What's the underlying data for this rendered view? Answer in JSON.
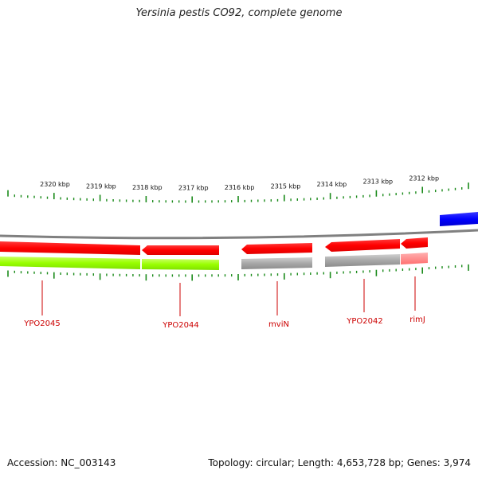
{
  "title": "Yersinia pestis CO92, complete genome",
  "footer": {
    "accession": "Accession: NC_003143",
    "summary": "Topology: circular; Length: 4,653,728 bp; Genes: 3,974"
  },
  "colors": {
    "gene_forward": "#ff0000",
    "gene_forward_light": "#ff8080",
    "feature_blue": "#0000ff",
    "cds_green": "#99ff00",
    "cds_grey": "#a8a8a8",
    "ticks": "#1a8a1a",
    "backbone": "#808080",
    "label": "#cc0000"
  },
  "ruler": {
    "unit": "kbp",
    "labels": [
      "2320 kbp",
      "2319 kbp",
      "2318 kbp",
      "2317 kbp",
      "2316 kbp",
      "2315 kbp",
      "2314 kbp",
      "2313 kbp",
      "2312 kbp"
    ]
  },
  "genes": [
    {
      "name": "YPO2045"
    },
    {
      "name": "YPO2044"
    },
    {
      "name": "mviN"
    },
    {
      "name": "YPO2042"
    },
    {
      "name": "rimJ"
    }
  ]
}
